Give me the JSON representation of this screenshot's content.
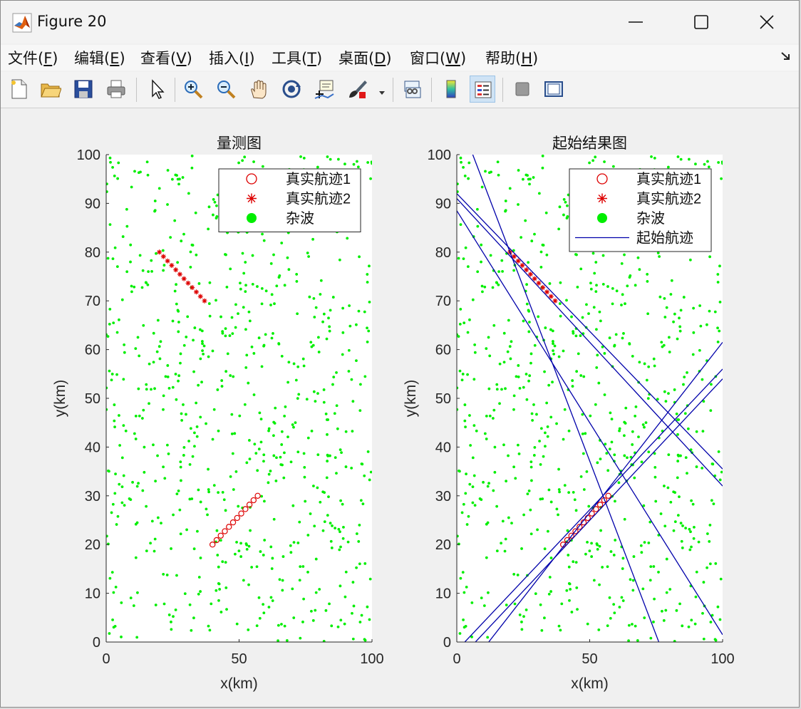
{
  "window": {
    "title": "Figure 20"
  },
  "menu": [
    {
      "pre": "文件(",
      "key": "F",
      "post": ")"
    },
    {
      "pre": "编辑(",
      "key": "E",
      "post": ")"
    },
    {
      "pre": "查看(",
      "key": "V",
      "post": ")"
    },
    {
      "pre": "插入(",
      "key": "I",
      "post": ")"
    },
    {
      "pre": "工具(",
      "key": "T",
      "post": ")"
    },
    {
      "pre": "桌面(",
      "key": "D",
      "post": ")"
    },
    {
      "pre": "窗口(",
      "key": "W",
      "post": ")"
    },
    {
      "pre": "帮助(",
      "key": "H",
      "post": ")"
    }
  ],
  "toolbar": [
    "new-figure-icon",
    "open-folder-icon",
    "save-icon",
    "print-icon",
    "pointer-icon",
    "zoom-in-icon",
    "zoom-out-icon",
    "pan-hand-icon",
    "rotate-3d-icon",
    "data-cursor-icon",
    "brush-icon",
    "link-plot-icon",
    "colorbar-icon",
    "legend-icon",
    "hide-plot-tools-icon",
    "show-plot-tools-icon"
  ],
  "colors": {
    "clutter": "#00ee00",
    "truth": "#dd0000",
    "track": "#0000aa"
  },
  "chart_data": [
    {
      "type": "scatter",
      "title": "量测图",
      "xlabel": "x(km)",
      "ylabel": "y(km)",
      "xlim": [
        0,
        100
      ],
      "ylim": [
        0,
        100
      ],
      "xticks": [
        0,
        50,
        100
      ],
      "yticks": [
        0,
        10,
        20,
        30,
        40,
        50,
        60,
        70,
        80,
        90,
        100
      ],
      "legend_position": "top-right",
      "legend": [
        "真实航迹1",
        "真实航迹2",
        "杂波"
      ],
      "series": [
        {
          "name": "真实航迹1",
          "marker": "o",
          "start": [
            40,
            20
          ],
          "end": [
            57,
            30
          ],
          "points": 12
        },
        {
          "name": "真实航迹2",
          "marker": "*",
          "start": [
            20,
            80
          ],
          "end": [
            37,
            70
          ],
          "points": 12
        },
        {
          "name": "杂波",
          "marker": "dot",
          "count": 720
        }
      ]
    },
    {
      "type": "scatter",
      "title": "起始结果图",
      "xlabel": "x(km)",
      "ylabel": "y(km)",
      "xlim": [
        0,
        100
      ],
      "ylim": [
        0,
        100
      ],
      "xticks": [
        0,
        50,
        100
      ],
      "yticks": [
        0,
        10,
        20,
        30,
        40,
        50,
        60,
        70,
        80,
        90,
        100
      ],
      "legend_position": "top-right",
      "legend": [
        "真实航迹1",
        "真实航迹2",
        "杂波",
        "起始航迹"
      ],
      "series": [
        {
          "name": "真实航迹1",
          "marker": "o",
          "start": [
            40,
            20
          ],
          "end": [
            57,
            30
          ],
          "points": 12
        },
        {
          "name": "真实航迹2",
          "marker": "*",
          "start": [
            20,
            80
          ],
          "end": [
            37,
            70
          ],
          "points": 12
        },
        {
          "name": "杂波",
          "marker": "dot",
          "count": 720
        },
        {
          "name": "起始航迹",
          "marker": "line",
          "lines": [
            [
              [
                6,
                100
              ],
              [
                76,
                0
              ]
            ],
            [
              [
                0,
                88.5
              ],
              [
                100,
                1.5
              ]
            ],
            [
              [
                0,
                91
              ],
              [
                100,
                32
              ]
            ],
            [
              [
                0,
                92
              ],
              [
                100,
                35.5
              ]
            ],
            [
              [
                3,
                0
              ],
              [
                100,
                56
              ]
            ],
            [
              [
                7,
                0
              ],
              [
                100,
                54
              ]
            ],
            [
              [
                12,
                0
              ],
              [
                100,
                61.5
              ]
            ]
          ]
        }
      ]
    }
  ]
}
